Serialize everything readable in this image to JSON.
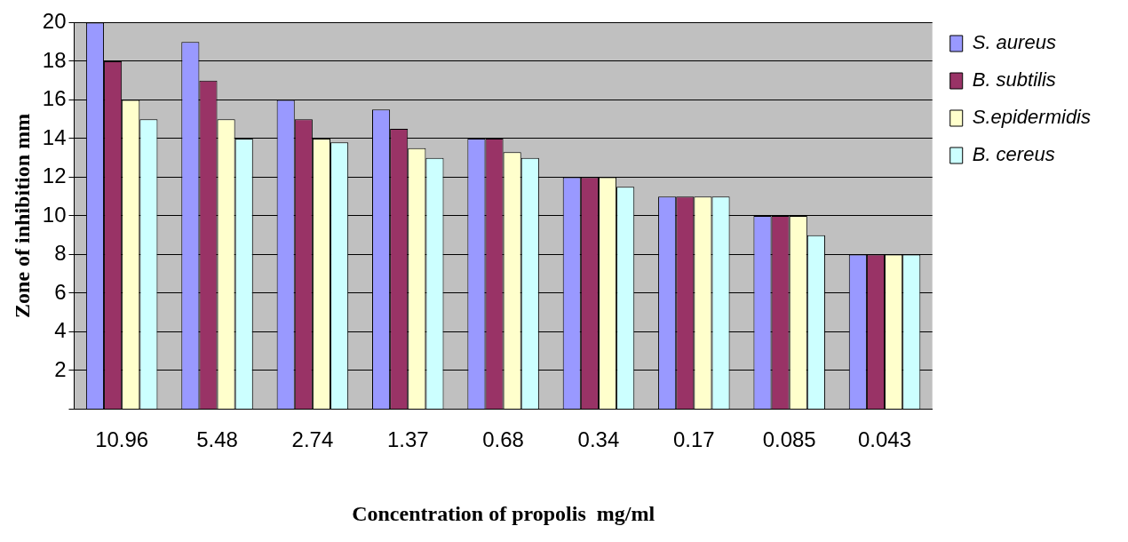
{
  "chart_data": {
    "type": "bar",
    "xlabel": "Concentration of propolis  mg/ml",
    "ylabel": "Zone of inhibition mm",
    "categories": [
      "10.96",
      "5.48",
      "2.74",
      "1.37",
      "0.68",
      "0.34",
      "0.17",
      "0.085",
      "0.043"
    ],
    "series": [
      {
        "name": "S. aureus",
        "color": "#9999ff",
        "values": [
          20,
          19,
          16,
          15.5,
          14,
          12,
          11,
          10,
          8
        ]
      },
      {
        "name": "B. subtilis",
        "color": "#993366",
        "values": [
          18,
          17,
          15,
          14.5,
          14,
          12,
          11,
          10,
          8
        ]
      },
      {
        "name": "S.epidermidis",
        "color": "#ffffcc",
        "values": [
          16,
          15,
          14,
          13.5,
          13.3,
          12,
          11,
          10,
          8
        ]
      },
      {
        "name": "B. cereus",
        "color": "#ccffff",
        "values": [
          15,
          14,
          13.8,
          13,
          13,
          11.5,
          11,
          9,
          8
        ]
      }
    ],
    "ylim": [
      0,
      20
    ],
    "yticks": [
      {
        "value": 0,
        "label": null
      },
      2,
      4,
      6,
      8,
      10,
      12,
      14,
      16,
      18,
      20
    ],
    "grid": "y",
    "legend": "right"
  }
}
